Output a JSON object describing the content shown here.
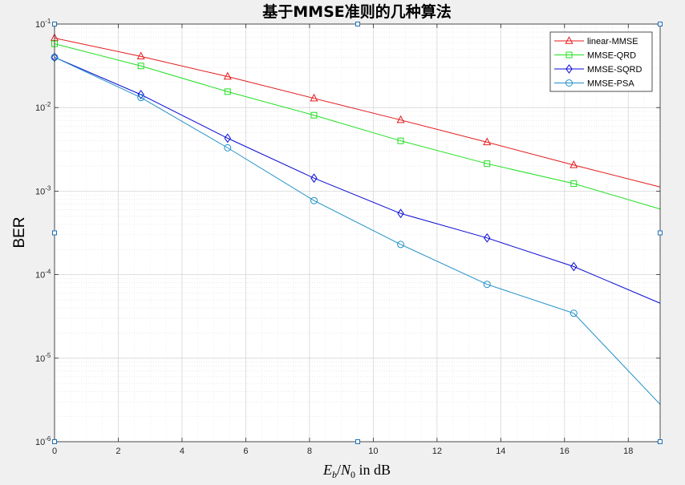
{
  "chart_data": {
    "type": "line",
    "title": "基于MMSE准则的几种算法",
    "xlabel": "E_b/N_0 in dB",
    "ylabel": "BER",
    "xlim": [
      0,
      19
    ],
    "ylim": [
      1e-06,
      0.1
    ],
    "yscale": "log",
    "grid": true,
    "minor_grid": true,
    "legend_position": "top-right",
    "x_ticks": [
      "0",
      "2",
      "4",
      "6",
      "8",
      "10",
      "12",
      "14",
      "16",
      "18"
    ],
    "y_ticks": [
      {
        "base": "10",
        "exp": "-6"
      },
      {
        "base": "10",
        "exp": "-5"
      },
      {
        "base": "10",
        "exp": "-4"
      },
      {
        "base": "10",
        "exp": "-3"
      },
      {
        "base": "10",
        "exp": "-2"
      },
      {
        "base": "10",
        "exp": "-1"
      }
    ],
    "series": [
      {
        "name": "linear-MMSE",
        "color": "#e41a1c",
        "marker": "triangle",
        "x": [
          0,
          2.71,
          5.43,
          8.14,
          10.86,
          13.57,
          16.29,
          19
        ],
        "y": [
          0.068,
          0.041,
          0.0235,
          0.0129,
          0.0071,
          0.00385,
          0.00205,
          0.00112
        ]
      },
      {
        "name": "MMSE-QRD",
        "color": "#1fe01f",
        "marker": "square",
        "x": [
          0,
          2.71,
          5.43,
          8.14,
          10.86,
          13.57,
          16.29,
          19
        ],
        "y": [
          0.058,
          0.0315,
          0.0155,
          0.0081,
          0.004,
          0.00213,
          0.00123,
          0.00061
        ]
      },
      {
        "name": "MMSE-SQRD",
        "color": "#0a0ad4",
        "marker": "diamond",
        "x": [
          0,
          2.71,
          5.43,
          8.14,
          10.86,
          13.57,
          16.29,
          19
        ],
        "y": [
          0.04,
          0.0143,
          0.0043,
          0.00143,
          0.00054,
          0.000275,
          0.000125,
          4.55e-05
        ]
      },
      {
        "name": "MMSE-PSA",
        "color": "#1f8fc8",
        "marker": "circle",
        "x": [
          0,
          2.71,
          5.43,
          8.14,
          10.86,
          13.57,
          16.29,
          19
        ],
        "y": [
          0.04,
          0.0132,
          0.0033,
          0.00077,
          0.00023,
          7.65e-05,
          3.45e-05,
          2.8e-06
        ]
      }
    ]
  }
}
